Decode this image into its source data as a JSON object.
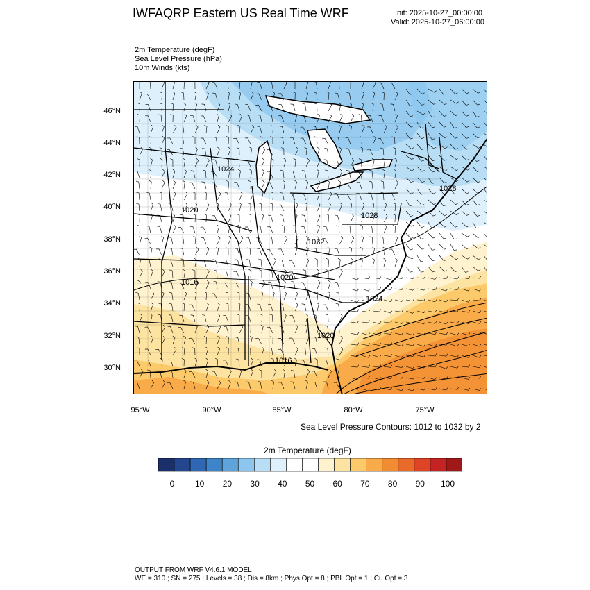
{
  "header": {
    "title": "IWFAQRP Eastern US Real Time WRF",
    "init": "Init: 2025-10-27_00:00:00",
    "valid": "Valid: 2025-10-27_06:00:00"
  },
  "fields": [
    "2m Temperature   (degF)",
    "Sea Level Pressure   (hPa)",
    "10m Winds   (kts)"
  ],
  "axes": {
    "lat_labels": [
      "46°N",
      "44°N",
      "42°N",
      "40°N",
      "38°N",
      "36°N",
      "34°N",
      "32°N",
      "30°N"
    ],
    "lon_labels": [
      "95°W",
      "90°W",
      "85°W",
      "80°W",
      "75°W"
    ]
  },
  "pressure_labels": [
    "1024",
    "1020",
    "1016",
    "1020",
    "1028",
    "1032",
    "1024",
    "1020",
    "1016",
    "1028"
  ],
  "contour_note": "Sea Level Pressure Contours: 1012 to 1032 by 2",
  "colorbar": {
    "title": "2m Temperature  (degF)",
    "tick_labels": [
      "0",
      "10",
      "20",
      "30",
      "40",
      "50",
      "60",
      "70",
      "80",
      "90",
      "100"
    ],
    "colors": [
      "#1b2f6b",
      "#24468f",
      "#2f67b3",
      "#3f84c9",
      "#5fa3db",
      "#8cc6ee",
      "#b8def6",
      "#ddf0fb",
      "#ffffff",
      "#ffffff",
      "#fff3cf",
      "#fde3a1",
      "#fcc96b",
      "#f8ab48",
      "#f28c32",
      "#ea6a2a",
      "#de4526",
      "#c42323",
      "#a01818"
    ]
  },
  "footer": {
    "line1": "OUTPUT FROM WRF V4.6.1 MODEL",
    "line2": "WE = 310 ; SN = 275 ; Levels = 38 ; Dis = 8km ; Phys Opt = 8 ; PBL Opt = 1 ; Cu Opt = 3"
  }
}
